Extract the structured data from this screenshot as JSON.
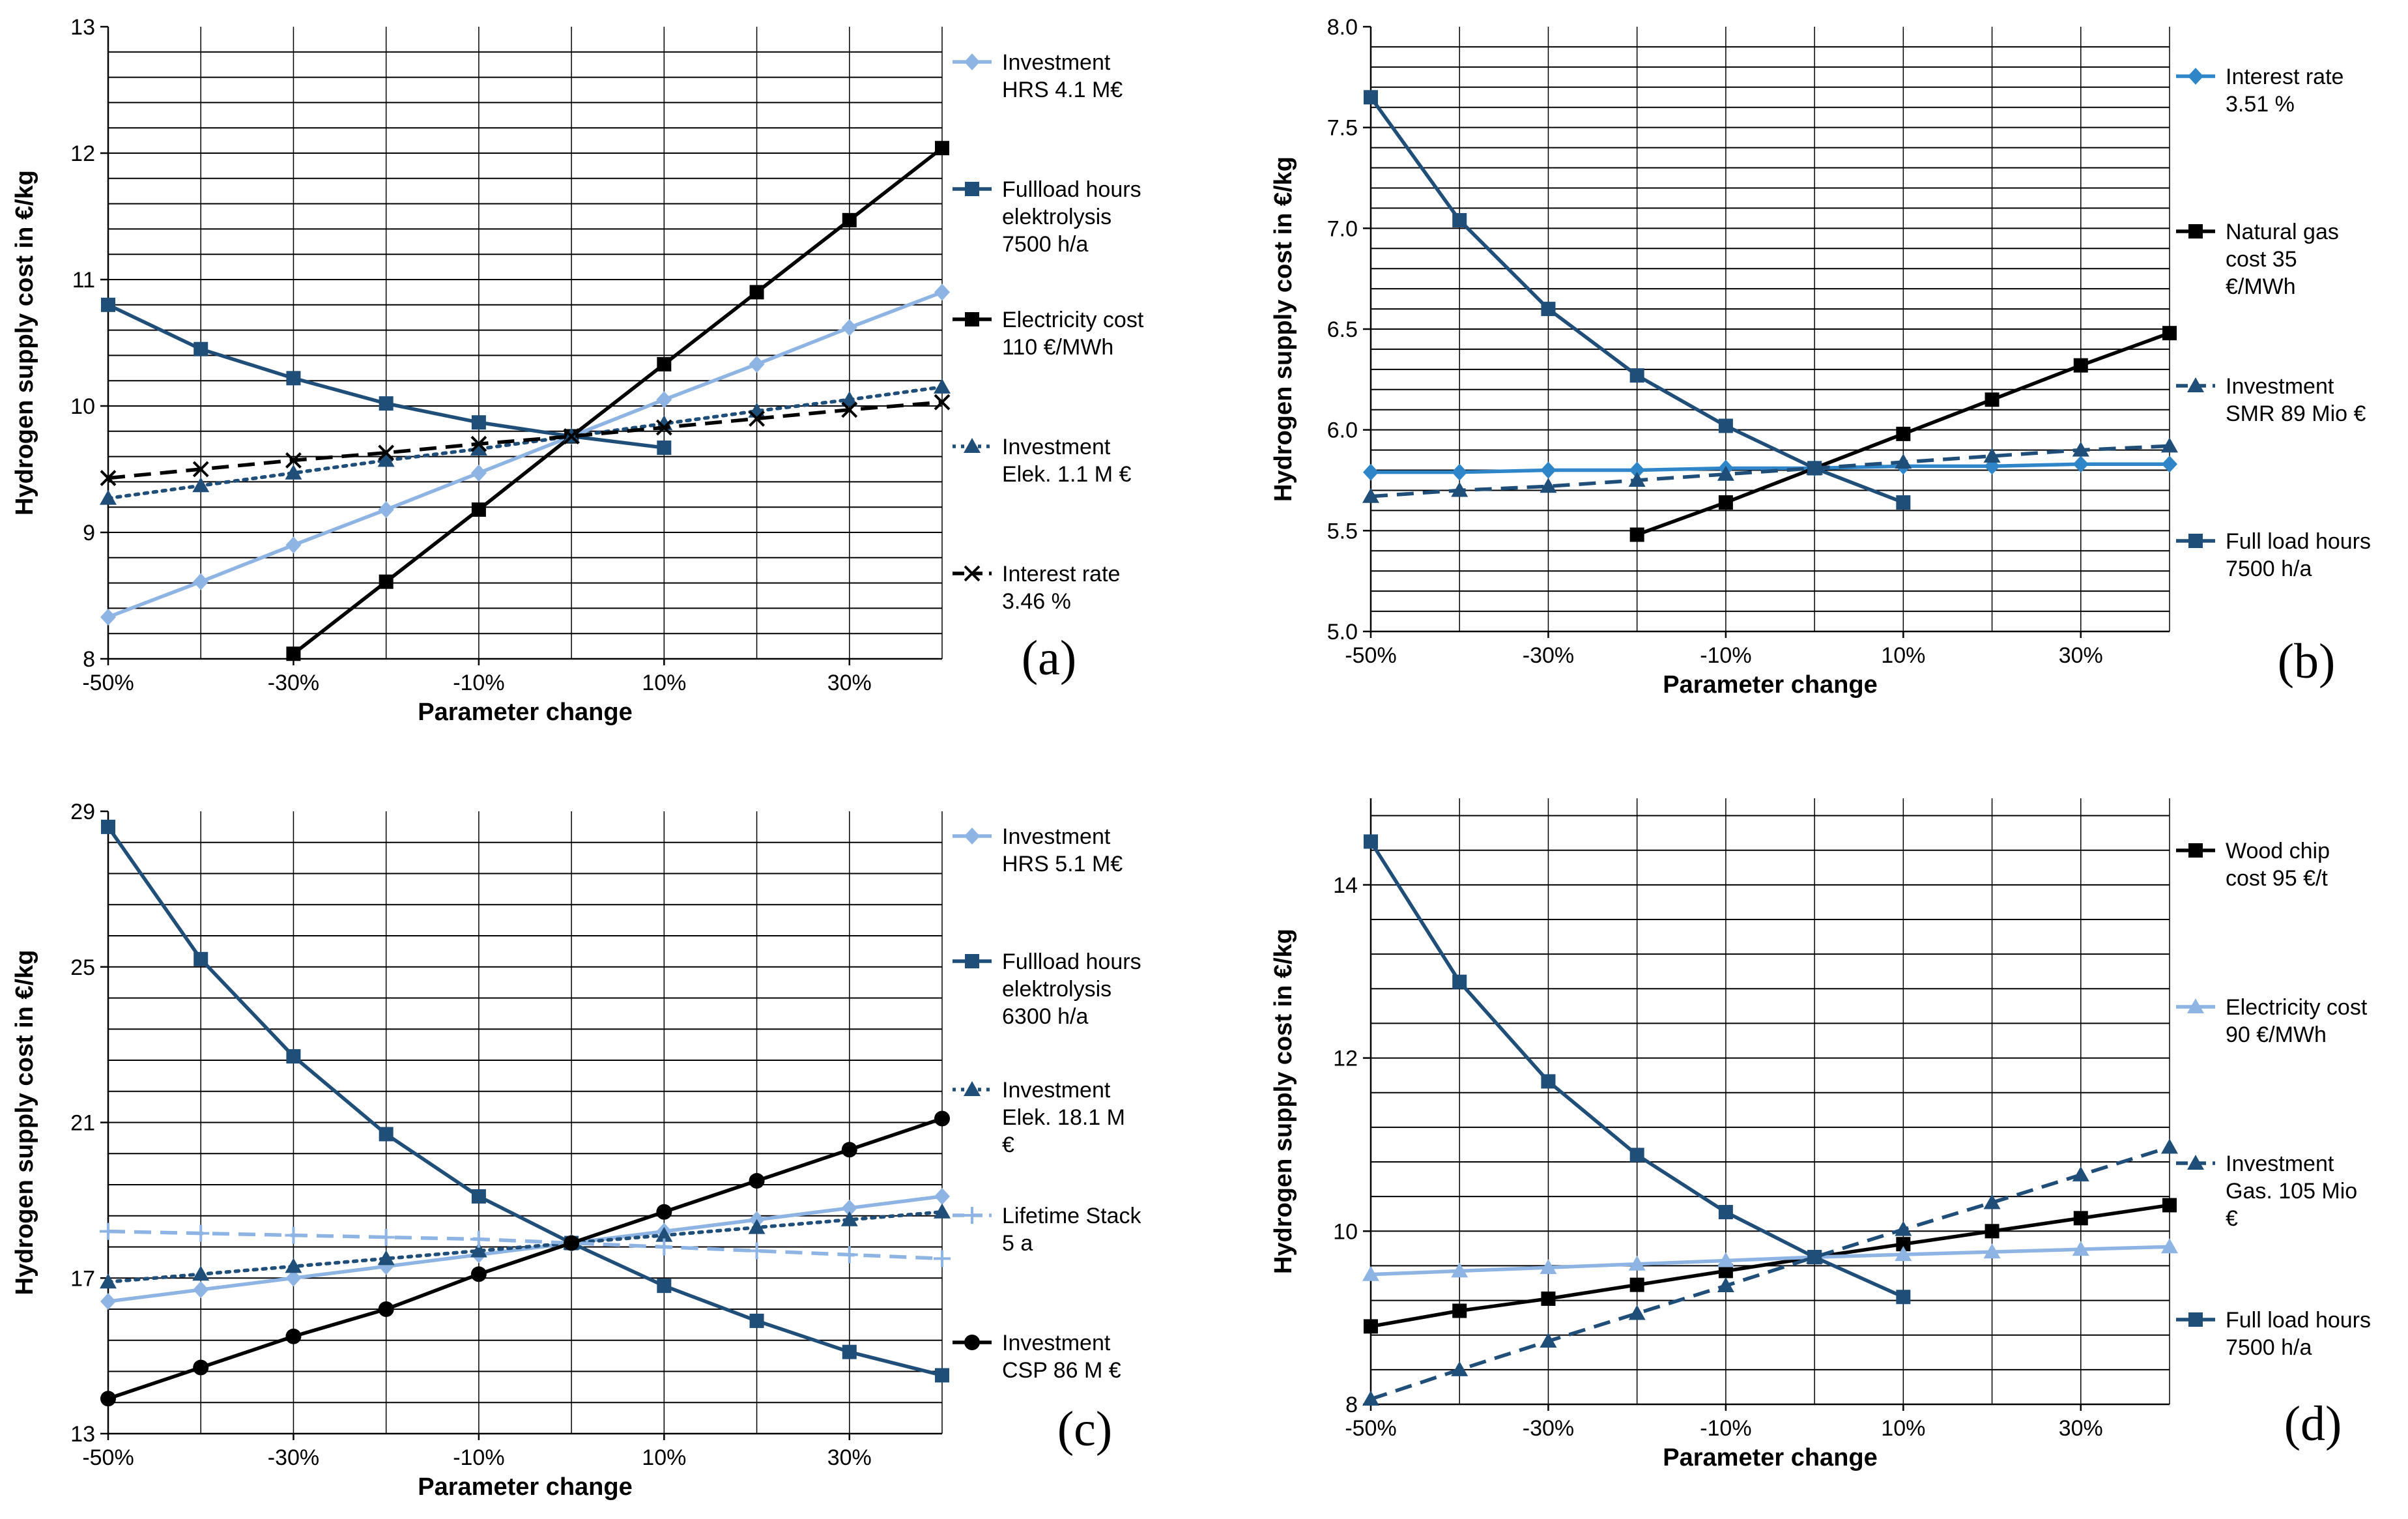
{
  "chart_data": [
    {
      "type": "line",
      "panel_label": "(a)",
      "xlabel": "Parameter change",
      "ylabel": "Hydrogen supply cost in €/kg",
      "x": [
        -50,
        -40,
        -30,
        -20,
        -10,
        0,
        10,
        20,
        30,
        40
      ],
      "xticks": [
        -50,
        -30,
        -10,
        10,
        30
      ],
      "xtick_labels": [
        "-50%",
        "-30%",
        "-10%",
        "10%",
        "30%"
      ],
      "ylim": [
        8,
        13
      ],
      "yticks": [
        8,
        9,
        10,
        11,
        12,
        13
      ],
      "ytick_labels": [
        "8",
        "9",
        "10",
        "11",
        "12",
        "13"
      ],
      "minor_step": 0.2,
      "series": [
        {
          "name": "Investment HRS 4.1 M€",
          "legend_lines": [
            "Investment",
            "HRS 4.1 M€"
          ],
          "color": "#8eb4e3",
          "dash": "solid",
          "marker": "diamond",
          "values": [
            8.33,
            8.61,
            8.9,
            9.18,
            9.47,
            9.76,
            10.05,
            10.33,
            10.62,
            10.9
          ]
        },
        {
          "name": "Fullload hours elektrolysis 7500 h/a",
          "legend_lines": [
            "Fullload hours",
            "elektrolysis",
            "7500 h/a"
          ],
          "color": "#1f4e79",
          "dash": "solid",
          "marker": "square",
          "values": [
            10.8,
            10.45,
            10.22,
            10.02,
            9.87,
            9.76,
            9.67,
            null,
            null,
            null
          ]
        },
        {
          "name": "Electricity cost 110 €/MWh",
          "legend_lines": [
            "Electricity cost",
            "110 €/MWh"
          ],
          "color": "#000000",
          "dash": "solid",
          "marker": "square",
          "values": [
            null,
            null,
            8.04,
            8.61,
            9.18,
            9.76,
            10.33,
            10.9,
            11.47,
            12.04
          ]
        },
        {
          "name": "Investment Elek. 1.1 M €",
          "legend_lines": [
            "Investment",
            "Elek. 1.1 M €"
          ],
          "color": "#1f4e79",
          "dash": "dotted",
          "marker": "triangle",
          "values": [
            9.27,
            9.37,
            9.47,
            9.57,
            9.66,
            9.76,
            9.86,
            9.96,
            10.05,
            10.15
          ]
        },
        {
          "name": "Interest rate 3.46 %",
          "legend_lines": [
            "Interest rate",
            "3.46 %"
          ],
          "color": "#000000",
          "dash": "dashed",
          "marker": "x",
          "values": [
            9.43,
            9.5,
            9.57,
            9.63,
            9.7,
            9.76,
            9.83,
            9.9,
            9.97,
            10.03
          ]
        }
      ]
    },
    {
      "type": "line",
      "panel_label": "(b)",
      "xlabel": "Parameter change",
      "ylabel": "Hydrogen supply cost in €/kg",
      "x": [
        -50,
        -40,
        -30,
        -20,
        -10,
        0,
        10,
        20,
        30,
        40
      ],
      "xticks": [
        -50,
        -30,
        -10,
        10,
        30
      ],
      "xtick_labels": [
        "-50%",
        "-30%",
        "-10%",
        "10%",
        "30%"
      ],
      "ylim": [
        5.0,
        8.0
      ],
      "yticks": [
        5.0,
        5.5,
        6.0,
        6.5,
        7.0,
        7.5,
        8.0
      ],
      "ytick_labels": [
        "5.0",
        "5.5",
        "6.0",
        "6.5",
        "7.0",
        "7.5",
        "8.0"
      ],
      "minor_step": 0.1,
      "series": [
        {
          "name": "Interest rate 3.51 %",
          "legend_lines": [
            "Interest rate",
            "3.51 %"
          ],
          "color": "#2e86c8",
          "dash": "solid",
          "marker": "diamond",
          "values": [
            5.79,
            5.79,
            5.8,
            5.8,
            5.81,
            5.81,
            5.82,
            5.82,
            5.83,
            5.83
          ]
        },
        {
          "name": "Natural gas cost 35 €/MWh",
          "legend_lines": [
            "Natural gas",
            "cost 35",
            "€/MWh"
          ],
          "color": "#000000",
          "dash": "solid",
          "marker": "square",
          "values": [
            null,
            null,
            null,
            5.48,
            5.64,
            5.81,
            5.98,
            6.15,
            6.32,
            6.48
          ]
        },
        {
          "name": "Investment SMR 89 Mio €",
          "legend_lines": [
            "Investment",
            "SMR 89 Mio €"
          ],
          "color": "#1f4e79",
          "dash": "dashed",
          "marker": "triangle",
          "values": [
            5.67,
            5.7,
            5.72,
            5.75,
            5.78,
            5.81,
            5.84,
            5.87,
            5.9,
            5.92
          ]
        },
        {
          "name": "Full load hours 7500 h/a",
          "legend_lines": [
            "Full load hours",
            "7500 h/a"
          ],
          "color": "#1f4e79",
          "dash": "solid",
          "marker": "square",
          "values": [
            7.65,
            7.04,
            6.6,
            6.27,
            6.02,
            5.81,
            5.64,
            null,
            null,
            null
          ]
        }
      ]
    },
    {
      "type": "line",
      "panel_label": "(c)",
      "xlabel": "Parameter change",
      "ylabel": "Hydrogen supply cost in €/kg",
      "x": [
        -50,
        -40,
        -30,
        -20,
        -10,
        0,
        10,
        20,
        30,
        40
      ],
      "xticks": [
        -50,
        -30,
        -10,
        10,
        30
      ],
      "xtick_labels": [
        "-50%",
        "-30%",
        "-10%",
        "10%",
        "30%"
      ],
      "ylim": [
        13,
        29
      ],
      "yticks": [
        13,
        17,
        21,
        25,
        29
      ],
      "ytick_labels": [
        "13",
        "17",
        "21",
        "25",
        "29"
      ],
      "minor_step": 0.8,
      "series": [
        {
          "name": "Investment HRS 5.1 M€",
          "legend_lines": [
            "Investment",
            "HRS 5.1 M€"
          ],
          "color": "#8eb4e3",
          "dash": "solid",
          "marker": "diamond",
          "values": [
            16.4,
            16.7,
            17.0,
            17.3,
            17.6,
            17.9,
            18.2,
            18.5,
            18.8,
            19.1
          ]
        },
        {
          "name": "Fullload hours elektrolysis 6300 h/a",
          "legend_lines": [
            "Fullload hours",
            "elektrolysis",
            "6300 h/a"
          ],
          "color": "#1f4e79",
          "dash": "solid",
          "marker": "square",
          "values": [
            28.6,
            25.2,
            22.7,
            20.7,
            19.1,
            17.9,
            16.8,
            15.9,
            15.1,
            14.5
          ]
        },
        {
          "name": "Investment Elek. 18.1 M €",
          "legend_lines": [
            "Investment",
            "Elek. 18.1 M",
            "€"
          ],
          "color": "#1f4e79",
          "dash": "dotted",
          "marker": "triangle",
          "values": [
            16.9,
            17.1,
            17.3,
            17.5,
            17.7,
            17.9,
            18.1,
            18.3,
            18.5,
            18.7
          ]
        },
        {
          "name": "Lifetime Stack 5 a",
          "legend_lines": [
            "Lifetime Stack",
            "5 a"
          ],
          "color": "#8eb4e3",
          "dash": "dashed",
          "marker": "plus",
          "values": [
            18.2,
            18.15,
            18.1,
            18.05,
            18.0,
            17.9,
            17.8,
            17.7,
            17.6,
            17.5
          ]
        },
        {
          "name": "Investment CSP 86 M €",
          "legend_lines": [
            "Investment",
            "CSP 86 M €"
          ],
          "color": "#000000",
          "dash": "solid",
          "marker": "circle",
          "values": [
            13.9,
            14.7,
            15.5,
            16.2,
            17.1,
            17.9,
            18.7,
            19.5,
            20.3,
            21.1
          ]
        }
      ]
    },
    {
      "type": "line",
      "panel_label": "(d)",
      "xlabel": "Parameter change",
      "ylabel": "Hydrogen supply cost in €/kg",
      "x": [
        -50,
        -40,
        -30,
        -20,
        -10,
        0,
        10,
        20,
        30,
        40
      ],
      "xticks": [
        -50,
        -30,
        -10,
        10,
        30
      ],
      "xtick_labels": [
        "-50%",
        "-30%",
        "-10%",
        "10%",
        "30%"
      ],
      "ylim": [
        8,
        15
      ],
      "yticks": [
        8,
        10,
        12,
        14
      ],
      "ytick_labels": [
        "8",
        "10",
        "12",
        "14"
      ],
      "minor_step": 0.4,
      "series": [
        {
          "name": "Wood chip cost 95 €/t",
          "legend_lines": [
            "Wood chip",
            "cost 95 €/t"
          ],
          "color": "#000000",
          "dash": "solid",
          "marker": "square",
          "values": [
            8.9,
            9.08,
            9.22,
            9.38,
            9.54,
            9.7,
            9.85,
            10.0,
            10.15,
            10.3
          ]
        },
        {
          "name": "Electricity cost 90 €/MWh",
          "legend_lines": [
            "Electricity cost",
            "90 €/MWh"
          ],
          "color": "#8eb4e3",
          "dash": "solid",
          "marker": "triangle",
          "values": [
            9.5,
            9.54,
            9.58,
            9.62,
            9.66,
            9.7,
            9.73,
            9.76,
            9.79,
            9.82
          ]
        },
        {
          "name": "Investment Gas. 105 Mio €",
          "legend_lines": [
            "Investment",
            "Gas. 105 Mio",
            "€"
          ],
          "color": "#1f4e79",
          "dash": "dashed",
          "marker": "triangle",
          "values": [
            8.06,
            8.4,
            8.73,
            9.05,
            9.37,
            9.7,
            10.02,
            10.33,
            10.65,
            10.97
          ]
        },
        {
          "name": "Full load hours 7500 h/a",
          "legend_lines": [
            "Full load hours",
            "7500 h/a"
          ],
          "color": "#1f4e79",
          "dash": "solid",
          "marker": "square",
          "values": [
            14.5,
            12.88,
            11.73,
            10.88,
            10.22,
            9.7,
            9.24,
            null,
            null,
            null
          ]
        }
      ]
    }
  ]
}
